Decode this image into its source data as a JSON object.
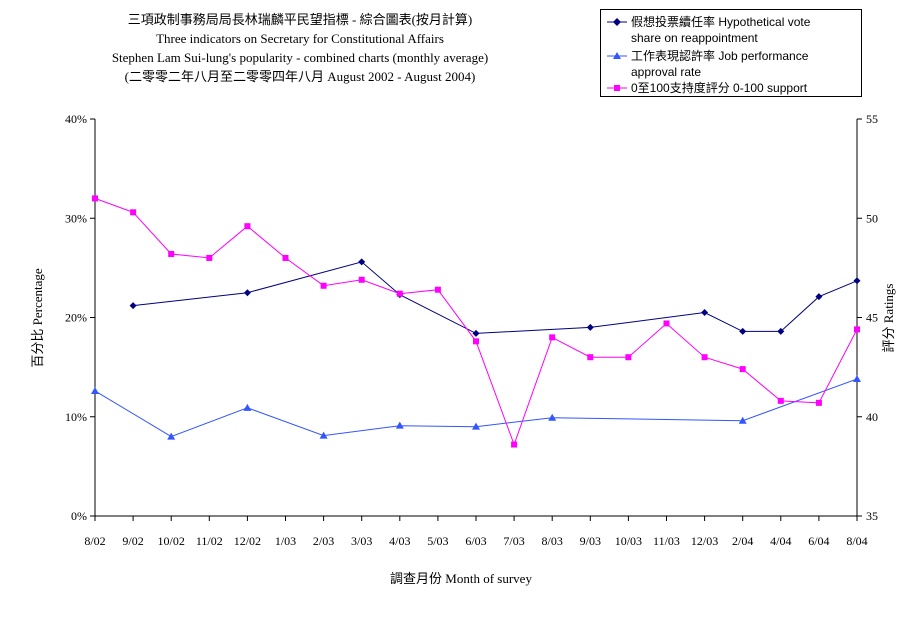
{
  "chart_data": {
    "type": "line",
    "title": "三項政制事務局局長林瑞麟平民望指標 - 綜合圖表(按月計算)",
    "subtitle_lines": [
      "Three indicators on Secretary for Constitutional Affairs",
      "Stephen Lam Sui-lung's popularity - combined charts (monthly average)",
      "(二零零二年八月至二零零四年八月 August 2002 - August 2004)"
    ],
    "xlabel": "調查月份 Month of survey",
    "ylabel_left": "百分比 Percentage",
    "ylabel_right": "評分 Ratings",
    "categories": [
      "8/02",
      "9/02",
      "10/02",
      "11/02",
      "12/02",
      "1/03",
      "2/03",
      "3/03",
      "4/03",
      "5/03",
      "6/03",
      "7/03",
      "8/03",
      "9/03",
      "10/03",
      "11/03",
      "12/03",
      "2/04",
      "4/04",
      "6/04",
      "8/04"
    ],
    "ylim_left": [
      0,
      40
    ],
    "ylim_right": [
      35,
      55
    ],
    "left_ticks": [
      "0%",
      "10%",
      "20%",
      "30%",
      "40%"
    ],
    "right_ticks": [
      "35",
      "40",
      "45",
      "50",
      "55"
    ],
    "grid": false,
    "legend_position": "top-right",
    "series": [
      {
        "name": "假想投票續任率 Hypothetical vote share on reappointment",
        "name_lines": [
          "假想投票續任率 Hypothetical vote",
          "share on reappointment"
        ],
        "axis": "left",
        "color": "#000080",
        "marker": "diamond",
        "points": [
          [
            1,
            21.2
          ],
          [
            4,
            22.5
          ],
          [
            7,
            25.6
          ],
          [
            8,
            22.3
          ],
          [
            10,
            18.4
          ],
          [
            13,
            19.0
          ],
          [
            16,
            20.5
          ],
          [
            17,
            18.6
          ],
          [
            18,
            18.6
          ],
          [
            19,
            22.1
          ],
          [
            20,
            23.7
          ]
        ]
      },
      {
        "name": "工作表現認許率 Job performance approval rate",
        "name_lines": [
          "工作表現認許率 Job performance",
          "approval rate"
        ],
        "axis": "left",
        "color": "#3355ff",
        "marker": "triangle",
        "points": [
          [
            0,
            12.6
          ],
          [
            2,
            8.0
          ],
          [
            4,
            10.9
          ],
          [
            6,
            8.1
          ],
          [
            8,
            9.1
          ],
          [
            10,
            9.0
          ],
          [
            12,
            9.9
          ],
          [
            17,
            9.6
          ],
          [
            20,
            13.8
          ]
        ]
      },
      {
        "name": "0至100支持度評分 0-100 support",
        "name_lines": [
          "0至100支持度評分 0-100 support"
        ],
        "axis": "right",
        "color": "#ff00ff",
        "marker": "square",
        "points": [
          [
            0,
            51.0
          ],
          [
            1,
            50.3
          ],
          [
            2,
            48.2
          ],
          [
            3,
            48.0
          ],
          [
            4,
            49.6
          ],
          [
            5,
            48.0
          ],
          [
            6,
            46.6
          ],
          [
            7,
            46.9
          ],
          [
            8,
            46.2
          ],
          [
            9,
            46.4
          ],
          [
            10,
            43.8
          ],
          [
            11,
            38.6
          ],
          [
            12,
            44.0
          ],
          [
            13,
            43.0
          ],
          [
            14,
            43.0
          ],
          [
            15,
            44.7
          ],
          [
            16,
            43.0
          ],
          [
            17,
            42.4
          ],
          [
            18,
            40.8
          ],
          [
            19,
            40.7
          ],
          [
            20,
            44.4
          ]
        ]
      }
    ]
  }
}
